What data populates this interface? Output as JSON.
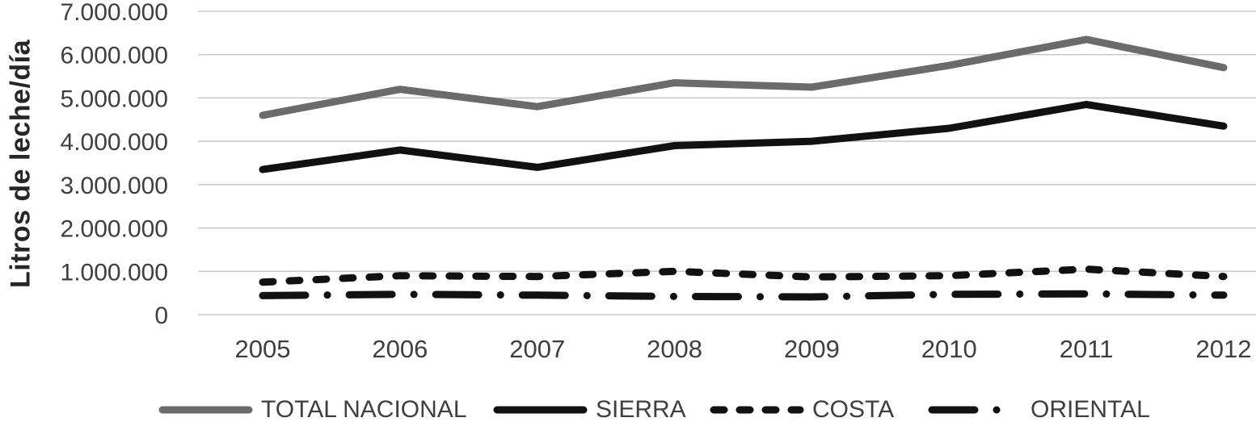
{
  "chart_data": {
    "type": "line",
    "title": "",
    "xlabel": "",
    "ylabel": "Litros de leche/día",
    "categories": [
      "2005",
      "2006",
      "2007",
      "2008",
      "2009",
      "2010",
      "2011",
      "2012"
    ],
    "y_ticks": [
      "0",
      "1.000.000",
      "2.000.000",
      "3.000.000",
      "4.000.000",
      "5.000.000",
      "6.000.000",
      "7.000.000"
    ],
    "y_tick_values": [
      0,
      1000000,
      2000000,
      3000000,
      4000000,
      5000000,
      6000000,
      7000000
    ],
    "ylim": [
      0,
      7000000
    ],
    "grid": "horizontal gridlines only, no axis lines, no markers",
    "legend_position": "bottom",
    "series": [
      {
        "name": "TOTAL NACIONAL",
        "color": "#6b6b6b",
        "dash": "solid",
        "values": [
          4600000,
          5200000,
          4800000,
          5350000,
          5250000,
          5750000,
          6350000,
          5700000
        ]
      },
      {
        "name": "SIERRA",
        "color": "#111111",
        "dash": "solid",
        "values": [
          3350000,
          3800000,
          3400000,
          3900000,
          4000000,
          4300000,
          4850000,
          4350000
        ]
      },
      {
        "name": "COSTA",
        "color": "#111111",
        "dash": "dashed",
        "values": [
          750000,
          900000,
          880000,
          1000000,
          870000,
          900000,
          1050000,
          880000
        ]
      },
      {
        "name": "ORIENTAL",
        "color": "#111111",
        "dash": "dash-dot",
        "values": [
          440000,
          470000,
          450000,
          420000,
          410000,
          470000,
          480000,
          450000
        ]
      }
    ]
  },
  "colors": {
    "background": "#ffffff",
    "gridline": "#c8c8c8",
    "axis_text": "#3f3f3f",
    "y_axis_title_text": "#262626"
  }
}
